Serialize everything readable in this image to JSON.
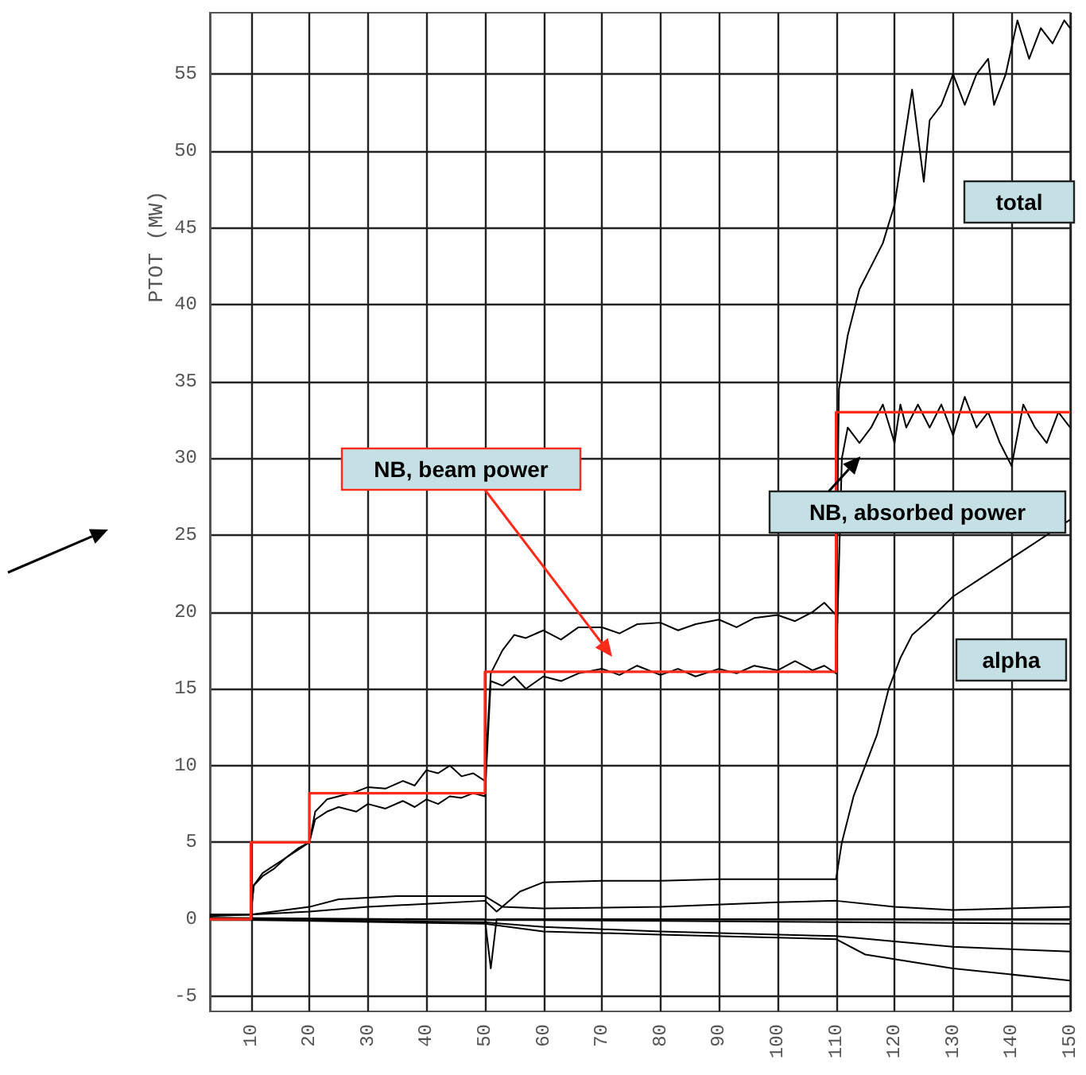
{
  "chart_data": {
    "type": "line",
    "ylabel": "PTOT (MW)",
    "xlim": [
      3,
      150
    ],
    "xticks": [
      10,
      20,
      30,
      40,
      50,
      60,
      70,
      80,
      90,
      100,
      110,
      120,
      130,
      140,
      150
    ],
    "ylim": [
      -6,
      59
    ],
    "yticks": [
      -5,
      0,
      5,
      10,
      15,
      20,
      25,
      30,
      35,
      40,
      45,
      50,
      55
    ],
    "grid": true,
    "annotations": [
      "NB, beam power",
      "total",
      "NB, absorbed power",
      "alpha"
    ],
    "series": [
      {
        "type": "step",
        "color": "#ff2a1a",
        "x": [
          3,
          10,
          20,
          50,
          110,
          150
        ],
        "values": [
          0,
          5,
          8.2,
          16.1,
          33,
          33
        ]
      },
      {
        "color": "#000000",
        "x": [
          3,
          10,
          10.5,
          12,
          14,
          16,
          18,
          20,
          21,
          23,
          25,
          28,
          30,
          33,
          36,
          38,
          40,
          42,
          44,
          46,
          48,
          50,
          51,
          53,
          55,
          57,
          60,
          63,
          66,
          70,
          73,
          76,
          80,
          83,
          86,
          90,
          93,
          96,
          100,
          103,
          106,
          108,
          110,
          110.5,
          112,
          114,
          116,
          118,
          120,
          121,
          123,
          124,
          125,
          126,
          128,
          130,
          132,
          134,
          136,
          137,
          139,
          141,
          143,
          145,
          147,
          149,
          150
        ],
        "values": [
          0.3,
          0.3,
          2.2,
          3,
          3.5,
          4,
          4.6,
          5,
          7,
          7.8,
          8,
          8.3,
          8.6,
          8.5,
          9,
          8.7,
          9.7,
          9.5,
          10,
          9.3,
          9.5,
          9,
          16,
          17.5,
          18.5,
          18.3,
          18.8,
          18.2,
          19,
          19,
          18.6,
          19.2,
          19.3,
          18.8,
          19.2,
          19.5,
          19,
          19.6,
          19.8,
          19.4,
          20,
          20.6,
          19.8,
          34.5,
          38,
          41,
          42.5,
          44,
          46.5,
          49,
          54,
          51,
          48,
          52,
          53,
          55,
          53,
          55,
          56,
          53,
          55,
          58.5,
          56,
          58,
          57,
          58.5,
          58
        ]
      },
      {
        "color": "#000000",
        "x": [
          3,
          10,
          10.5,
          12,
          14,
          16,
          18,
          20,
          21,
          23,
          25,
          28,
          30,
          33,
          36,
          38,
          40,
          42,
          44,
          46,
          48,
          50,
          51,
          53,
          55,
          57,
          60,
          63,
          66,
          70,
          73,
          76,
          80,
          83,
          86,
          90,
          93,
          96,
          100,
          103,
          106,
          108,
          110,
          111,
          112,
          114,
          116,
          118,
          120,
          121,
          122,
          124,
          126,
          128,
          130,
          132,
          134,
          136,
          138,
          140,
          142,
          144,
          146,
          148,
          150
        ],
        "values": [
          0.2,
          0.3,
          2.2,
          2.8,
          3.3,
          4,
          4.5,
          5,
          6.5,
          7,
          7.3,
          7,
          7.5,
          7.2,
          7.7,
          7.3,
          7.8,
          7.5,
          8,
          7.9,
          8.2,
          8,
          15.5,
          15.2,
          15.8,
          15,
          15.8,
          15.5,
          16,
          16.3,
          15.9,
          16.5,
          15.9,
          16.3,
          15.8,
          16.3,
          16,
          16.5,
          16.2,
          16.8,
          16.2,
          16.5,
          16,
          30,
          32,
          31,
          32,
          33.5,
          31,
          33.5,
          32,
          33.5,
          32,
          33.5,
          31.5,
          34,
          32,
          33,
          31,
          29.5,
          33.5,
          32,
          31,
          33,
          32
        ]
      },
      {
        "color": "#000000",
        "x": [
          3,
          10,
          20,
          30,
          40,
          50,
          52,
          56,
          60,
          70,
          80,
          90,
          100,
          110,
          111,
          113,
          115,
          117,
          119,
          121,
          123,
          126,
          130,
          134,
          138,
          142,
          146,
          150
        ],
        "values": [
          0.3,
          0.3,
          0.5,
          0.8,
          1,
          1.2,
          0.5,
          1.8,
          2.4,
          2.5,
          2.5,
          2.6,
          2.6,
          2.6,
          5,
          8,
          10,
          12,
          15,
          17,
          18.5,
          19.5,
          21,
          22,
          23,
          24,
          25,
          26
        ]
      },
      {
        "color": "#000000",
        "x": [
          3,
          10,
          20,
          25,
          35,
          50,
          53,
          60,
          80,
          100,
          110,
          120,
          130,
          150
        ],
        "values": [
          0.3,
          0.3,
          0.8,
          1.3,
          1.5,
          1.5,
          0.8,
          0.7,
          0.8,
          1.1,
          1.2,
          0.8,
          0.6,
          0.8
        ]
      },
      {
        "color": "#000000",
        "x": [
          3,
          50,
          51,
          52,
          150
        ],
        "values": [
          0,
          0,
          -3.2,
          0,
          0
        ]
      },
      {
        "color": "#000000",
        "x": [
          3,
          50,
          60,
          80,
          110,
          130,
          150
        ],
        "values": [
          0,
          -0.2,
          -0.5,
          -0.8,
          -1.1,
          -1.8,
          -2.1
        ]
      },
      {
        "color": "#000000",
        "x": [
          3,
          50,
          60,
          80,
          100,
          110,
          115,
          130,
          150
        ],
        "values": [
          0,
          -0.3,
          -0.8,
          -1,
          -1.2,
          -1.3,
          -2.3,
          -3.2,
          -4
        ]
      },
      {
        "color": "#000000",
        "x": [
          3,
          150
        ],
        "values": [
          0.1,
          -0.3
        ]
      }
    ]
  }
}
